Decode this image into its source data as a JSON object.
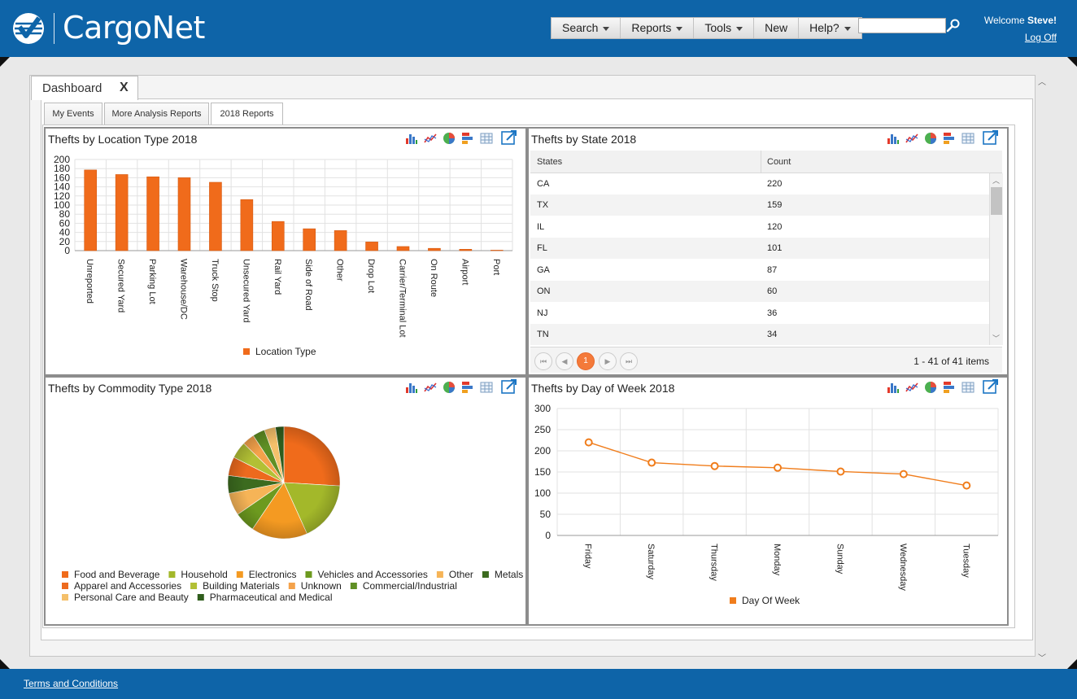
{
  "header": {
    "brand": "CargoNet",
    "menu": [
      {
        "label": "Search",
        "dropdown": true
      },
      {
        "label": "Reports",
        "dropdown": true
      },
      {
        "label": "Tools",
        "dropdown": true
      },
      {
        "label": "New",
        "dropdown": false
      },
      {
        "label": "Help?",
        "dropdown": true
      }
    ],
    "search_value": "",
    "welcome_prefix": "Welcome ",
    "user_name": "Steve!",
    "logoff_label": "Log Off"
  },
  "tabs": {
    "main_tab": "Dashboard",
    "close_label": "X",
    "subtabs": [
      "My Events",
      "More Analysis Reports",
      "2018 Reports"
    ],
    "active_subtab": 2
  },
  "icons": {
    "toolbar": [
      "bar-chart-icon",
      "line-chart-icon",
      "pie-chart-icon",
      "stacked-bar-icon",
      "table-grid-icon"
    ],
    "expand": "expand-window-icon",
    "search": "search-icon"
  },
  "colors": {
    "header_blue": "#0e64a8",
    "series_orange": "#f07d1c",
    "bar_orange": "#f06b1b"
  },
  "panels": {
    "location": {
      "title": "Thefts by Location Type 2018",
      "chart_data": {
        "type": "bar",
        "categories": [
          "Unreported",
          "Secured Yard",
          "Parking Lot",
          "Warehouse/DC",
          "Truck Stop",
          "Unsecured Yard",
          "Rail Yard",
          "Side of Road",
          "Other",
          "Drop Lot",
          "Carrier/Terminal Lot",
          "On Route",
          "Airport",
          "Port"
        ],
        "series": [
          {
            "name": "Location Type",
            "values": [
              177,
              167,
              162,
              160,
              150,
              112,
              64,
              48,
              44,
              19,
              9,
              5,
              3,
              1
            ]
          }
        ],
        "ylim": [
          0,
          200
        ],
        "yticks": [
          0,
          20,
          40,
          60,
          80,
          100,
          120,
          140,
          160,
          180,
          200
        ],
        "grid": true,
        "legend": "bottom"
      }
    },
    "state": {
      "title": "Thefts by State 2018",
      "columns": [
        "States",
        "Count"
      ],
      "rows": [
        [
          "CA",
          "220"
        ],
        [
          "TX",
          "159"
        ],
        [
          "IL",
          "120"
        ],
        [
          "FL",
          "101"
        ],
        [
          "GA",
          "87"
        ],
        [
          "ON",
          "60"
        ],
        [
          "NJ",
          "36"
        ],
        [
          "TN",
          "34"
        ]
      ],
      "pager": {
        "current": "1",
        "info": "1 - 41 of 41 items"
      }
    },
    "commodity": {
      "title": "Thefts by Commodity Type 2018",
      "chart_data": {
        "type": "pie",
        "legend": "bottom",
        "slices": [
          {
            "name": "Food and Beverage",
            "value": 96,
            "color": "#f06b1b"
          },
          {
            "name": "Household",
            "value": 64,
            "color": "#a3b82a"
          },
          {
            "name": "Electronics",
            "value": 60,
            "color": "#f49a22"
          },
          {
            "name": "Vehicles and Accessories",
            "value": 22,
            "color": "#6d9a1f"
          },
          {
            "name": "Other",
            "value": 24,
            "color": "#f6b457"
          },
          {
            "name": "Metals",
            "value": 19,
            "color": "#3c6b1f"
          },
          {
            "name": "Apparel and Accessories",
            "value": 20,
            "color": "#ed6a1e"
          },
          {
            "name": "Building Materials",
            "value": 18,
            "color": "#b2c035"
          },
          {
            "name": "Unknown",
            "value": 13,
            "color": "#f4a24b"
          },
          {
            "name": "Commercial/Industrial",
            "value": 13,
            "color": "#5f8f24"
          },
          {
            "name": "Personal Care and Beauty",
            "value": 12,
            "color": "#f5c06a"
          },
          {
            "name": "Pharmaceutical and Medical",
            "value": 9,
            "color": "#2f5d1c"
          }
        ]
      }
    },
    "day": {
      "title": "Thefts by Day of Week 2018",
      "chart_data": {
        "type": "line",
        "categories": [
          "Friday",
          "Saturday",
          "Thursday",
          "Monday",
          "Sunday",
          "Wednesday",
          "Tuesday"
        ],
        "series": [
          {
            "name": "Day Of Week",
            "values": [
              220,
              172,
              164,
              160,
              151,
              145,
              118
            ]
          }
        ],
        "ylim": [
          0,
          300
        ],
        "yticks": [
          0,
          50,
          100,
          150,
          200,
          250,
          300
        ],
        "grid": true,
        "legend": "bottom"
      }
    }
  },
  "footer": {
    "terms": "Terms and Conditions"
  }
}
